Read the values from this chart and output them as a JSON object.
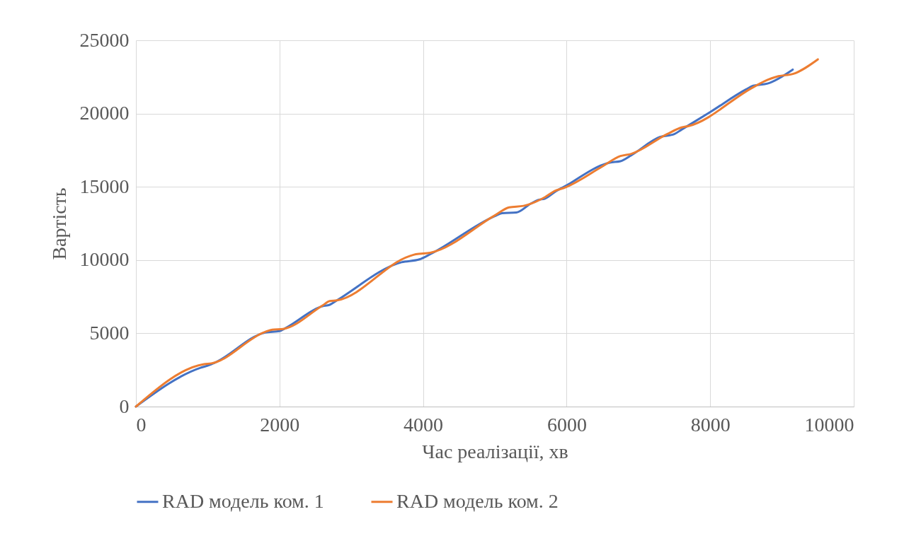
{
  "chart_data": {
    "type": "line",
    "xlabel": "Час реалізації, хв",
    "ylabel": "Вартість",
    "xlim": [
      0,
      10000
    ],
    "xticks": [
      0,
      2000,
      4000,
      6000,
      8000,
      10000
    ],
    "ylim": [
      0,
      25000
    ],
    "yticks": [
      0,
      5000,
      10000,
      15000,
      20000,
      25000
    ],
    "grid": true,
    "legend": "bottom",
    "marker": "none",
    "line_style": "solid",
    "series": [
      {
        "name": "RAD модель ком. 1",
        "color": "#4472c4",
        "x": [
          0,
          900,
          1000,
          1100,
          1800,
          2000,
          2100,
          2600,
          2700,
          2800,
          3700,
          3950,
          4100,
          5000,
          5100,
          5300,
          5500,
          5600,
          5700,
          5850,
          6000,
          6500,
          6600,
          6750,
          6900,
          7300,
          7500,
          7600,
          8000,
          8500,
          8600,
          8800,
          9150
        ],
        "values": [
          0,
          2650,
          2800,
          3000,
          5050,
          5150,
          5400,
          6850,
          6950,
          7250,
          9850,
          10050,
          10400,
          13000,
          13200,
          13250,
          13850,
          14100,
          14200,
          14700,
          15100,
          16500,
          16650,
          16750,
          17150,
          18400,
          18600,
          18900,
          20100,
          21650,
          21900,
          22050,
          23000
        ]
      },
      {
        "name": "RAD модель ком. 2",
        "color": "#ed7d31",
        "x": [
          0,
          950,
          1050,
          1800,
          1900,
          2050,
          2600,
          2700,
          2800,
          3800,
          3900,
          4100,
          5000,
          5200,
          5400,
          5700,
          5850,
          5950,
          6500,
          6750,
          6900,
          7400,
          7600,
          7700,
          8600,
          8800,
          8950,
          9150,
          9500
        ],
        "values": [
          0,
          2900,
          2950,
          5100,
          5250,
          5300,
          6900,
          7200,
          7250,
          10250,
          10400,
          10500,
          13050,
          13600,
          13700,
          14300,
          14750,
          14900,
          16400,
          17100,
          17250,
          18600,
          19050,
          19150,
          21800,
          22300,
          22550,
          22700,
          23700
        ]
      }
    ]
  }
}
